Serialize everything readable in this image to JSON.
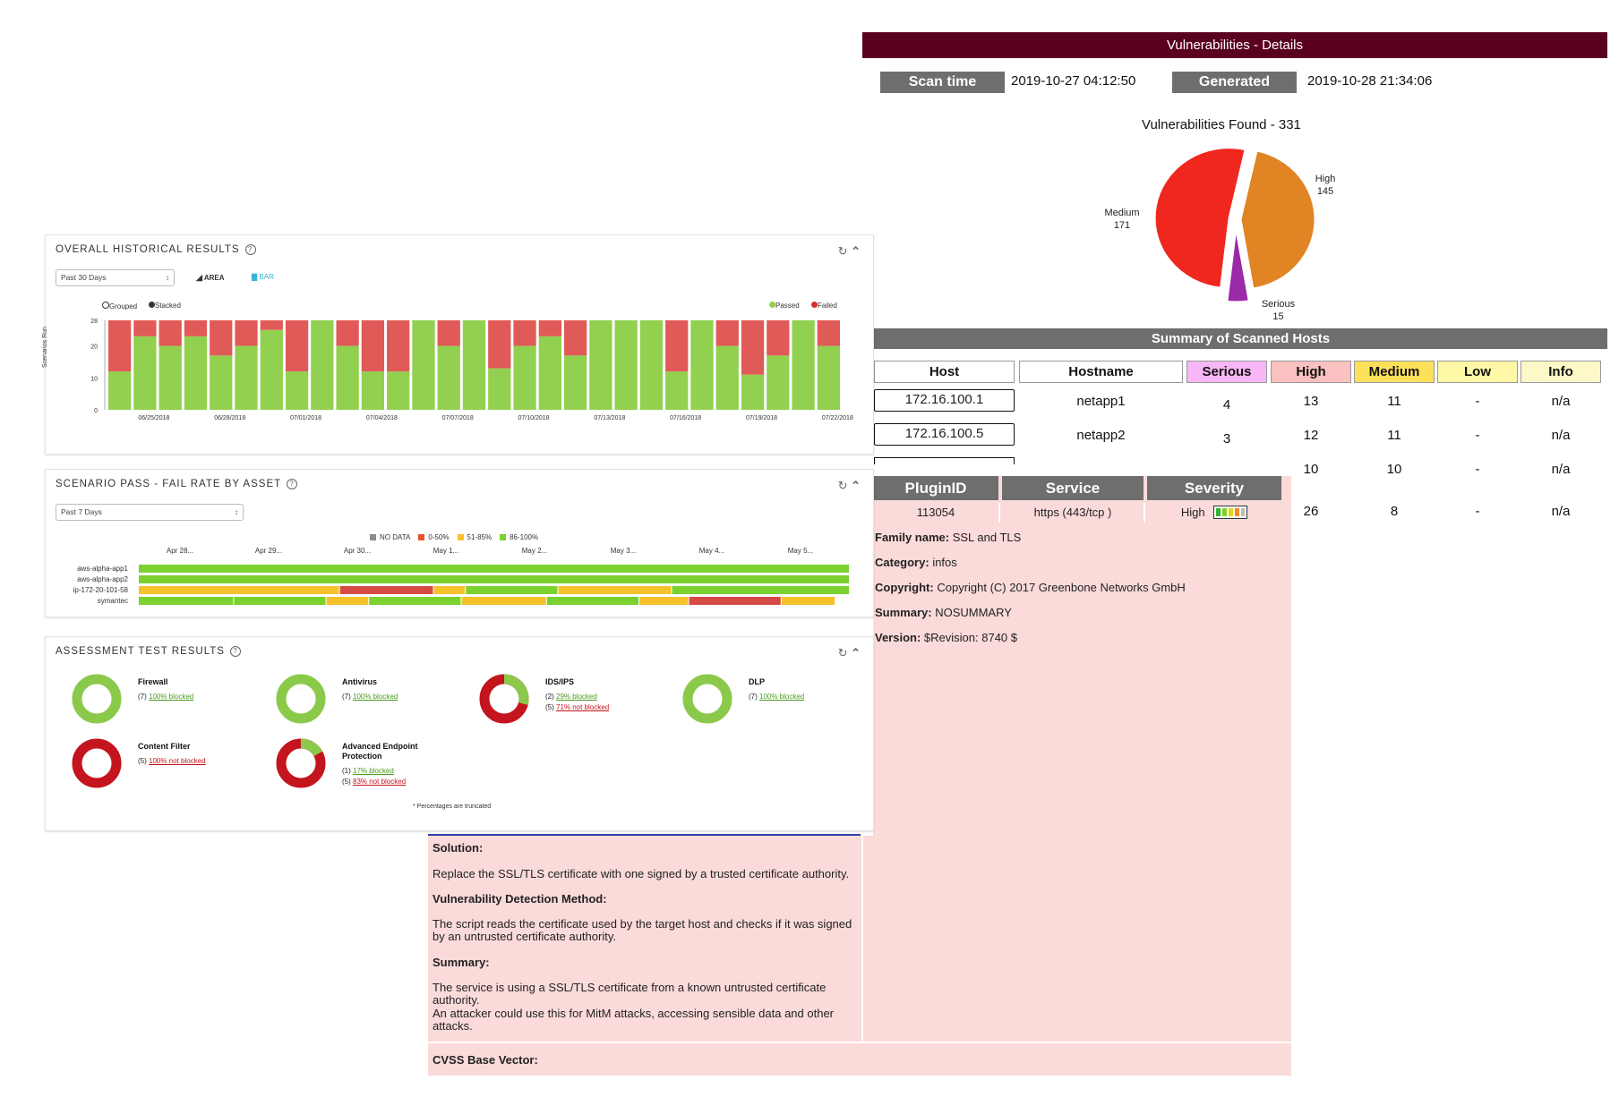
{
  "vuln_report": {
    "title": "Vulnerabilities  - Details",
    "scan_time_label": "Scan time",
    "scan_time_value": "2019-10-27 04:12:50",
    "generated_label": "Generated",
    "generated_value": "2019-10-28 21:34:06",
    "pie": {
      "title": "Vulnerabilities Found - 331",
      "slices": [
        {
          "label": "Medium",
          "value": 171,
          "color": "#f0271f"
        },
        {
          "label": "High",
          "value": 145,
          "color": "#e08424"
        },
        {
          "label": "Serious",
          "value": 15,
          "color": "#9b2aa8"
        }
      ]
    },
    "summary_title": "Summary of Scanned Hosts",
    "columns": [
      "Host",
      "Hostname",
      "Serious",
      "High",
      "Medium",
      "Low",
      "Info"
    ],
    "column_colors": [
      "#ffffff",
      "#ffffff",
      "#f7b6f5",
      "#fbc0c0",
      "#fde05a",
      "#fdf7a6",
      "#fdf8c8"
    ],
    "rows": [
      {
        "host": "172.16.100.1",
        "hostname": "netapp1",
        "serious": "4",
        "high": "13",
        "medium": "11",
        "low": "-",
        "info": "n/a"
      },
      {
        "host": "172.16.100.5",
        "hostname": "netapp2",
        "serious": "3",
        "high": "12",
        "medium": "11",
        "low": "-",
        "info": "n/a"
      },
      {
        "high": "10",
        "medium": "10",
        "low": "-",
        "info": "n/a"
      },
      {
        "high": "26",
        "medium": "8",
        "low": "-",
        "info": "n/a"
      }
    ],
    "plugin": {
      "headers": [
        "PluginID",
        "Service",
        "Severity"
      ],
      "id": "113054",
      "service": "https (443/tcp )",
      "severity": "High",
      "details": [
        {
          "label": "Family name:",
          "value": "SSL and TLS"
        },
        {
          "label": "Category:",
          "value": "infos"
        },
        {
          "label": "Copyright:",
          "value": "Copyright (C) 2017 Greenbone Networks GmbH"
        },
        {
          "label": "Summary:",
          "value": "NOSUMMARY"
        },
        {
          "label": "Version:",
          "value": "$Revision: 8740 $"
        }
      ]
    },
    "solution": {
      "solution_label": "Solution:",
      "solution_text": "Replace the SSL/TLS certificate with one signed by a trusted certificate authority.",
      "method_label": "Vulnerability Detection Method:",
      "method_text": "The script reads the certificate used by the target host and checks if it was signed by an untrusted certificate authority.",
      "summary_label": "Summary:",
      "summary_text_1": "The service is using a SSL/TLS certificate from a known untrusted certificate authority.",
      "summary_text_2": "An attacker could use this for MitM attacks, accessing sensible data and other attacks.",
      "cvss_label": "CVSS Base Vector:"
    }
  },
  "historical": {
    "title": "OVERALL HISTORICAL RESULTS",
    "range_select": "Past 30 Days",
    "view_area": "AREA",
    "view_bar": "BAR",
    "grouped_label": "Grouped",
    "stacked_label": "Stacked",
    "legend_passed": "Passed",
    "legend_failed": "Failed",
    "ylabel": "Scenarios Run"
  },
  "chart_data": {
    "type": "bar",
    "stacked": true,
    "title": "OVERALL HISTORICAL RESULTS",
    "ylabel": "Scenarios Run",
    "ylim": [
      0,
      28
    ],
    "yticks": [
      0,
      10,
      20,
      28
    ],
    "xtick_labels": [
      "06/25/2018",
      "06/28/2018",
      "07/01/2018",
      "07/04/2018",
      "07/07/2018",
      "07/10/2018",
      "07/13/2018",
      "07/16/2018",
      "07/19/2018",
      "07/22/2018"
    ],
    "series": [
      {
        "name": "Passed",
        "color": "#92d050",
        "values": [
          12,
          23,
          20,
          23,
          17,
          20,
          25,
          12,
          28,
          20,
          12,
          12,
          28,
          20,
          28,
          13,
          20,
          23,
          17,
          28,
          28,
          28,
          12,
          28,
          20,
          11,
          17,
          28,
          20
        ]
      },
      {
        "name": "Failed",
        "color": "#e05b57",
        "values": [
          16,
          5,
          8,
          5,
          11,
          8,
          3,
          16,
          0,
          8,
          16,
          16,
          0,
          8,
          0,
          15,
          8,
          5,
          11,
          0,
          0,
          0,
          16,
          0,
          8,
          17,
          11,
          0,
          8
        ]
      }
    ]
  },
  "scenario": {
    "title": "SCENARIO PASS - FAIL RATE BY ASSET",
    "range_select": "Past 7 Days",
    "legend": [
      {
        "label": "NO DATA",
        "color": "#8c8c8c"
      },
      {
        "label": "0-50%",
        "color": "#e8542f"
      },
      {
        "label": "51-85%",
        "color": "#f5c22b"
      },
      {
        "label": "86-100%",
        "color": "#7bd12e"
      }
    ],
    "dates": [
      "Apr 28...",
      "Apr 29...",
      "Apr 30...",
      "May 1...",
      "May 2...",
      "May 3...",
      "May 4...",
      "May 5..."
    ],
    "assets": [
      {
        "name": "aws-alpha-app1",
        "segments": [
          [
            "#7bd12e",
            1.0
          ]
        ]
      },
      {
        "name": "aws-alpha-app2",
        "segments": [
          [
            "#7bd12e",
            1.0
          ]
        ]
      },
      {
        "name": "ip-172-20-101-58",
        "segments": [
          [
            "#f5c22b",
            0.283
          ],
          [
            "#d64a46",
            0.132
          ],
          [
            "#f5c22b",
            0.045
          ],
          [
            "#7bd12e",
            0.13
          ],
          [
            "#f5c22b",
            0.16
          ],
          [
            "#7bd12e",
            0.25
          ]
        ]
      },
      {
        "name": "symantec",
        "segments": [
          [
            "#7bd12e",
            0.134
          ],
          [
            "#7bd12e",
            0.13
          ],
          [
            "#f5c22b",
            0.06
          ],
          [
            "#7bd12e",
            0.13
          ],
          [
            "#f5c22b",
            0.12
          ],
          [
            "#7bd12e",
            0.13
          ],
          [
            "#f5c22b",
            0.07
          ],
          [
            "#d64a46",
            0.13
          ],
          [
            "#f5c22b",
            0.076
          ]
        ]
      }
    ]
  },
  "assessment": {
    "title": "ASSESSMENT TEST RESULTS",
    "footnote": "* Percentages are truncated",
    "tests": [
      {
        "name": "Firewall",
        "lines": [
          {
            "prefix": "(7)",
            "text": "100% blocked",
            "kind": "ok"
          }
        ],
        "blocked_fraction": 1.0
      },
      {
        "name": "Antivirus",
        "lines": [
          {
            "prefix": "(7)",
            "text": "100% blocked",
            "kind": "ok"
          }
        ],
        "blocked_fraction": 1.0
      },
      {
        "name": "IDS/IPS",
        "lines": [
          {
            "prefix": "(2)",
            "text": "29% blocked",
            "kind": "ok"
          },
          {
            "prefix": "(5)",
            "text": "71% not blocked",
            "kind": "bad"
          }
        ],
        "blocked_fraction": 0.29
      },
      {
        "name": "DLP",
        "lines": [
          {
            "prefix": "(7)",
            "text": "100% blocked",
            "kind": "ok"
          }
        ],
        "blocked_fraction": 1.0
      },
      {
        "name": "Content Filter",
        "lines": [
          {
            "prefix": "(5)",
            "text": "100% not blocked",
            "kind": "bad"
          }
        ],
        "blocked_fraction": 0.0
      },
      {
        "name": "Advanced Endpoint Protection",
        "lines": [
          {
            "prefix": "(1)",
            "text": "17% blocked",
            "kind": "ok"
          },
          {
            "prefix": "(5)",
            "text": "83% not blocked",
            "kind": "bad"
          }
        ],
        "blocked_fraction": 0.17
      }
    ]
  }
}
